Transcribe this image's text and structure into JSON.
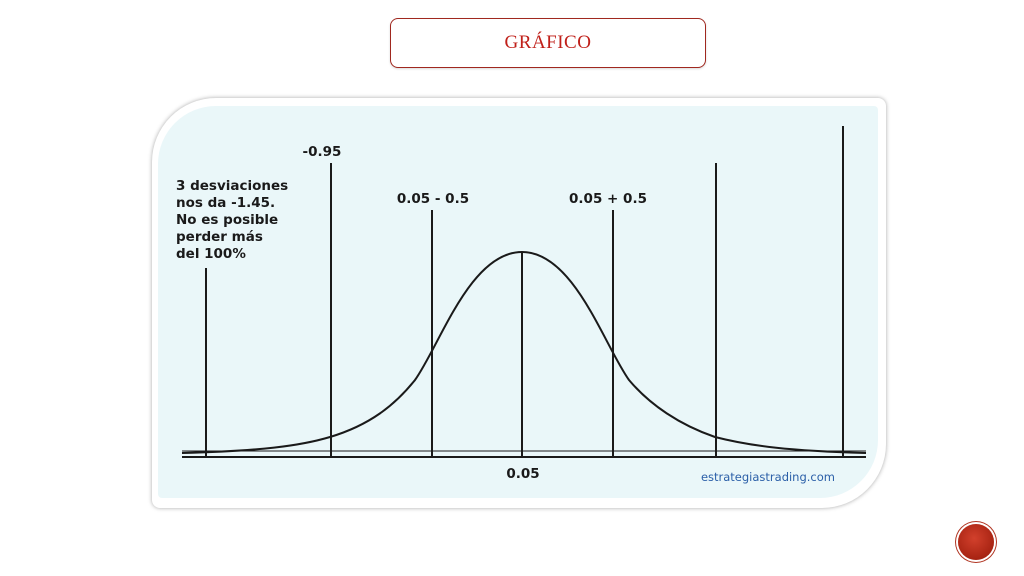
{
  "slide": {
    "title": "GRÁFICO"
  },
  "diagram": {
    "note_lines": [
      "3 desviaciones",
      "nos da -1.45.",
      "No es posible",
      "perder más",
      "del 100%"
    ],
    "label_minus_095": "-0.95",
    "label_left_sd": "0.05 - 0.5",
    "label_right_sd": "0.05 + 0.5",
    "label_mean": "0.05",
    "watermark": "estrategiastrading.com"
  },
  "colors": {
    "title_red": "#c0201a",
    "panel_bg": "#eaf7f9",
    "watermark_blue": "#2b5fa8",
    "nav_button": "#b5301e"
  },
  "icons": {
    "nav_button": "next-slide-icon"
  }
}
